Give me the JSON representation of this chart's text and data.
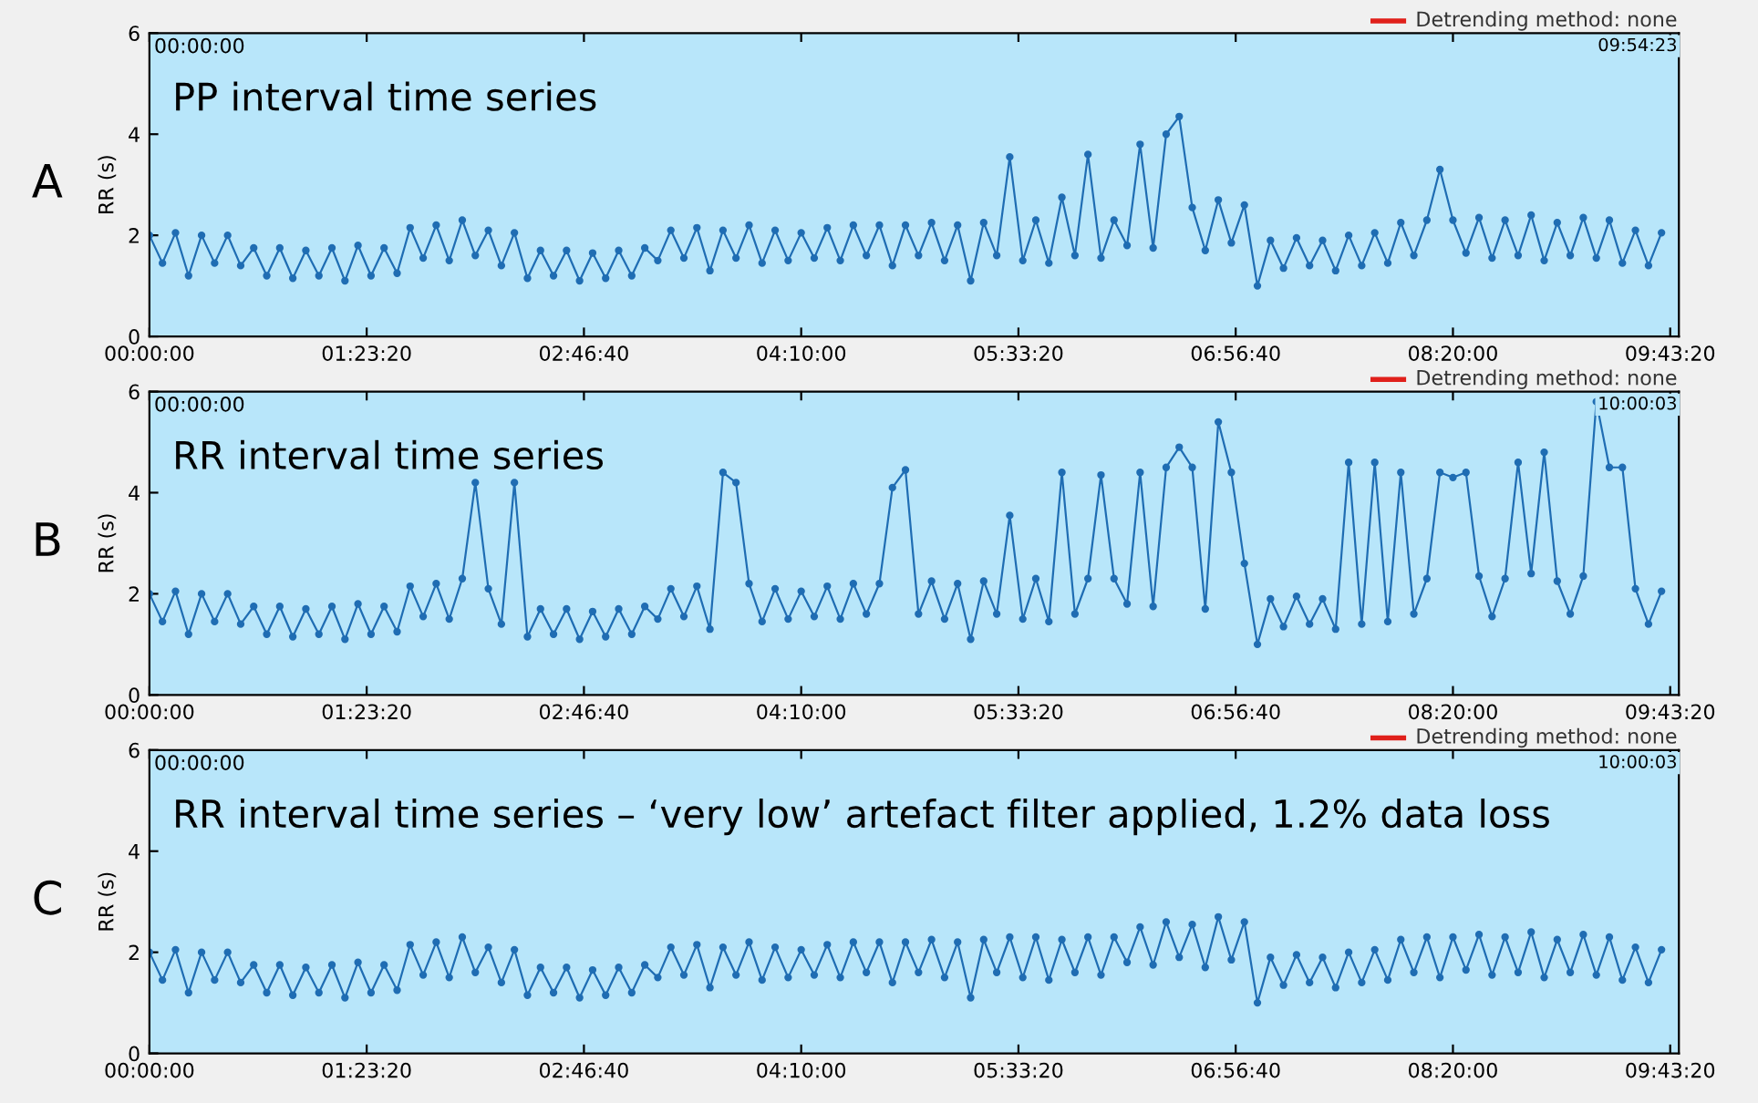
{
  "chart_data": [
    {
      "type": "line",
      "title": "PP interval time series",
      "ylabel": "RR (s)",
      "annotations": [
        "A",
        "00:00:00",
        "09:54:23",
        "Detrending method: none"
      ],
      "x": [
        0,
        300,
        600,
        900,
        1200,
        1500,
        1800,
        2100,
        2400,
        2700,
        3000,
        3300,
        3600,
        3900,
        4200,
        4500,
        4800,
        5100,
        5400,
        5700,
        6000,
        6300,
        6600,
        6900,
        7200,
        7500,
        7800,
        8100,
        8400,
        8700,
        9000,
        9300,
        9600,
        9900,
        10200,
        10500,
        10800,
        11100,
        11400,
        11700,
        12000,
        12300,
        12600,
        12900,
        13200,
        13500,
        13800,
        14100,
        14400,
        14700,
        15000,
        15300,
        15600,
        15900,
        16200,
        16500,
        16800,
        17100,
        17400,
        17700,
        18000,
        18300,
        18600,
        18900,
        19200,
        19500,
        19800,
        20100,
        20400,
        20700,
        21000,
        21300,
        21600,
        21900,
        22200,
        22500,
        22800,
        23100,
        23400,
        23700,
        24000,
        24300,
        24600,
        24900,
        25200,
        25500,
        25800,
        26100,
        26400,
        26700,
        27000,
        27300,
        27600,
        27900,
        28200,
        28500,
        28800,
        29100,
        29400,
        29700,
        30000,
        30300,
        30600,
        30900,
        31200,
        31500,
        31800,
        32100,
        32400,
        32700,
        33000,
        33300,
        33600,
        33900,
        34200,
        34500,
        34800
      ],
      "series": [
        {
          "color": "#1f6db3",
          "values": [
            2.0,
            1.45,
            2.05,
            1.2,
            2.0,
            1.45,
            2.0,
            1.4,
            1.75,
            1.2,
            1.75,
            1.15,
            1.7,
            1.2,
            1.75,
            1.1,
            1.8,
            1.2,
            1.75,
            1.25,
            2.15,
            1.55,
            2.2,
            1.5,
            2.3,
            1.6,
            2.1,
            1.4,
            2.05,
            1.15,
            1.7,
            1.2,
            1.7,
            1.1,
            1.65,
            1.15,
            1.7,
            1.2,
            1.75,
            1.5,
            2.1,
            1.55,
            2.15,
            1.3,
            2.1,
            1.55,
            2.2,
            1.45,
            2.1,
            1.5,
            2.05,
            1.55,
            2.15,
            1.5,
            2.2,
            1.6,
            2.2,
            1.4,
            2.2,
            1.6,
            2.25,
            1.5,
            2.2,
            1.1,
            2.25,
            1.6,
            3.55,
            1.5,
            2.3,
            1.45,
            2.75,
            1.6,
            3.6,
            1.55,
            2.3,
            1.8,
            3.8,
            1.75,
            4.0,
            4.35,
            2.55,
            1.7,
            2.7,
            1.85,
            2.6,
            1.0,
            1.9,
            1.35,
            1.95,
            1.4,
            1.9,
            1.3,
            2.0,
            1.4,
            2.05,
            1.45,
            2.25,
            1.6,
            2.3,
            3.3,
            2.3,
            1.65,
            2.35,
            1.55,
            2.3,
            1.6,
            2.4,
            1.5,
            2.25,
            1.6,
            2.35,
            1.55,
            2.3,
            1.45,
            2.1,
            1.4,
            2.05
          ]
        }
      ],
      "xlim": [
        0,
        35200
      ],
      "ylim": [
        0,
        6
      ],
      "yticks": [
        0,
        2,
        4,
        6
      ],
      "xticks": [
        {
          "value": 0,
          "label": "00:00:00"
        },
        {
          "value": 5000,
          "label": "01:23:20"
        },
        {
          "value": 10000,
          "label": "02:46:40"
        },
        {
          "value": 15000,
          "label": "04:10:00"
        },
        {
          "value": 20000,
          "label": "05:33:20"
        },
        {
          "value": 25000,
          "label": "06:56:40"
        },
        {
          "value": 30000,
          "label": "08:20:00"
        },
        {
          "value": 35000,
          "label": "09:43:20"
        }
      ],
      "marker": "circle",
      "line_style": "solid",
      "grid": false,
      "legend": false
    },
    {
      "type": "line",
      "title": "RR interval time series",
      "ylabel": "RR (s)",
      "annotations": [
        "B",
        "00:00:00",
        "10:00:03",
        "Detrending method: none"
      ],
      "x": [
        0,
        300,
        600,
        900,
        1200,
        1500,
        1800,
        2100,
        2400,
        2700,
        3000,
        3300,
        3600,
        3900,
        4200,
        4500,
        4800,
        5100,
        5400,
        5700,
        6000,
        6300,
        6600,
        6900,
        7200,
        7500,
        7800,
        8100,
        8400,
        8700,
        9000,
        9300,
        9600,
        9900,
        10200,
        10500,
        10800,
        11100,
        11400,
        11700,
        12000,
        12300,
        12600,
        12900,
        13200,
        13500,
        13800,
        14100,
        14400,
        14700,
        15000,
        15300,
        15600,
        15900,
        16200,
        16500,
        16800,
        17100,
        17400,
        17700,
        18000,
        18300,
        18600,
        18900,
        19200,
        19500,
        19800,
        20100,
        20400,
        20700,
        21000,
        21300,
        21600,
        21900,
        22200,
        22500,
        22800,
        23100,
        23400,
        23700,
        24000,
        24300,
        24600,
        24900,
        25200,
        25500,
        25800,
        26100,
        26400,
        26700,
        27000,
        27300,
        27600,
        27900,
        28200,
        28500,
        28800,
        29100,
        29400,
        29700,
        30000,
        30300,
        30600,
        30900,
        31200,
        31500,
        31800,
        32100,
        32400,
        32700,
        33000,
        33300,
        33600,
        33900,
        34200,
        34500,
        34800
      ],
      "series": [
        {
          "color": "#1f6db3",
          "values": [
            2.0,
            1.45,
            2.05,
            1.2,
            2.0,
            1.45,
            2.0,
            1.4,
            1.75,
            1.2,
            1.75,
            1.15,
            1.7,
            1.2,
            1.75,
            1.1,
            1.8,
            1.2,
            1.75,
            1.25,
            2.15,
            1.55,
            2.2,
            1.5,
            2.3,
            4.2,
            2.1,
            1.4,
            4.2,
            1.15,
            1.7,
            1.2,
            1.7,
            1.1,
            1.65,
            1.15,
            1.7,
            1.2,
            1.75,
            1.5,
            2.1,
            1.55,
            2.15,
            1.3,
            4.4,
            4.2,
            2.2,
            1.45,
            2.1,
            1.5,
            2.05,
            1.55,
            2.15,
            1.5,
            2.2,
            1.6,
            2.2,
            4.1,
            4.45,
            1.6,
            2.25,
            1.5,
            2.2,
            1.1,
            2.25,
            1.6,
            3.55,
            1.5,
            2.3,
            1.45,
            4.4,
            1.6,
            2.3,
            4.35,
            2.3,
            1.8,
            4.4,
            1.75,
            4.5,
            4.9,
            4.5,
            1.7,
            5.4,
            4.4,
            2.6,
            1.0,
            1.9,
            1.35,
            1.95,
            1.4,
            1.9,
            1.3,
            4.6,
            1.4,
            4.6,
            1.45,
            4.4,
            1.6,
            2.3,
            4.4,
            4.3,
            4.4,
            2.35,
            1.55,
            2.3,
            4.6,
            2.4,
            4.8,
            2.25,
            1.6,
            2.35,
            5.8,
            4.5,
            4.5,
            2.1,
            1.4,
            2.05
          ]
        }
      ],
      "xlim": [
        0,
        35200
      ],
      "ylim": [
        0,
        6
      ],
      "yticks": [
        0,
        2,
        4,
        6
      ],
      "xticks": [
        {
          "value": 0,
          "label": "00:00:00"
        },
        {
          "value": 5000,
          "label": "01:23:20"
        },
        {
          "value": 10000,
          "label": "02:46:40"
        },
        {
          "value": 15000,
          "label": "04:10:00"
        },
        {
          "value": 20000,
          "label": "05:33:20"
        },
        {
          "value": 25000,
          "label": "06:56:40"
        },
        {
          "value": 30000,
          "label": "08:20:00"
        },
        {
          "value": 35000,
          "label": "09:43:20"
        }
      ],
      "marker": "circle",
      "line_style": "solid",
      "grid": false,
      "legend": false
    },
    {
      "type": "line",
      "title": "RR interval time series – ‘very low’ artefact filter applied, 1.2% data loss",
      "ylabel": "RR (s)",
      "annotations": [
        "C",
        "00:00:00",
        "10:00:03",
        "Detrending method: none"
      ],
      "x": [
        0,
        300,
        600,
        900,
        1200,
        1500,
        1800,
        2100,
        2400,
        2700,
        3000,
        3300,
        3600,
        3900,
        4200,
        4500,
        4800,
        5100,
        5400,
        5700,
        6000,
        6300,
        6600,
        6900,
        7200,
        7500,
        7800,
        8100,
        8400,
        8700,
        9000,
        9300,
        9600,
        9900,
        10200,
        10500,
        10800,
        11100,
        11400,
        11700,
        12000,
        12300,
        12600,
        12900,
        13200,
        13500,
        13800,
        14100,
        14400,
        14700,
        15000,
        15300,
        15600,
        15900,
        16200,
        16500,
        16800,
        17100,
        17400,
        17700,
        18000,
        18300,
        18600,
        18900,
        19200,
        19500,
        19800,
        20100,
        20400,
        20700,
        21000,
        21300,
        21600,
        21900,
        22200,
        22500,
        22800,
        23100,
        23400,
        23700,
        24000,
        24300,
        24600,
        24900,
        25200,
        25500,
        25800,
        26100,
        26400,
        26700,
        27000,
        27300,
        27600,
        27900,
        28200,
        28500,
        28800,
        29100,
        29400,
        29700,
        30000,
        30300,
        30600,
        30900,
        31200,
        31500,
        31800,
        32100,
        32400,
        32700,
        33000,
        33300,
        33600,
        33900,
        34200,
        34500,
        34800
      ],
      "series": [
        {
          "color": "#1f6db3",
          "values": [
            2.0,
            1.45,
            2.05,
            1.2,
            2.0,
            1.45,
            2.0,
            1.4,
            1.75,
            1.2,
            1.75,
            1.15,
            1.7,
            1.2,
            1.75,
            1.1,
            1.8,
            1.2,
            1.75,
            1.25,
            2.15,
            1.55,
            2.2,
            1.5,
            2.3,
            1.6,
            2.1,
            1.4,
            2.05,
            1.15,
            1.7,
            1.2,
            1.7,
            1.1,
            1.65,
            1.15,
            1.7,
            1.2,
            1.75,
            1.5,
            2.1,
            1.55,
            2.15,
            1.3,
            2.1,
            1.55,
            2.2,
            1.45,
            2.1,
            1.5,
            2.05,
            1.55,
            2.15,
            1.5,
            2.2,
            1.6,
            2.2,
            1.4,
            2.2,
            1.6,
            2.25,
            1.5,
            2.2,
            1.1,
            2.25,
            1.6,
            2.3,
            1.5,
            2.3,
            1.45,
            2.25,
            1.6,
            2.3,
            1.55,
            2.3,
            1.8,
            2.5,
            1.75,
            2.6,
            1.9,
            2.55,
            1.7,
            2.7,
            1.85,
            2.6,
            1.0,
            1.9,
            1.35,
            1.95,
            1.4,
            1.9,
            1.3,
            2.0,
            1.4,
            2.05,
            1.45,
            2.25,
            1.6,
            2.3,
            1.5,
            2.3,
            1.65,
            2.35,
            1.55,
            2.3,
            1.6,
            2.4,
            1.5,
            2.25,
            1.6,
            2.35,
            1.55,
            2.3,
            1.45,
            2.1,
            1.4,
            2.05
          ]
        }
      ],
      "xlim": [
        0,
        35200
      ],
      "ylim": [
        0,
        6
      ],
      "yticks": [
        0,
        2,
        4,
        6
      ],
      "xticks": [
        {
          "value": 0,
          "label": "00:00:00"
        },
        {
          "value": 5000,
          "label": "01:23:20"
        },
        {
          "value": 10000,
          "label": "02:46:40"
        },
        {
          "value": 15000,
          "label": "04:10:00"
        },
        {
          "value": 20000,
          "label": "05:33:20"
        },
        {
          "value": 25000,
          "label": "06:56:40"
        },
        {
          "value": 30000,
          "label": "08:20:00"
        },
        {
          "value": 35000,
          "label": "09:43:20"
        }
      ],
      "marker": "circle",
      "line_style": "solid",
      "grid": false,
      "legend": false
    }
  ]
}
